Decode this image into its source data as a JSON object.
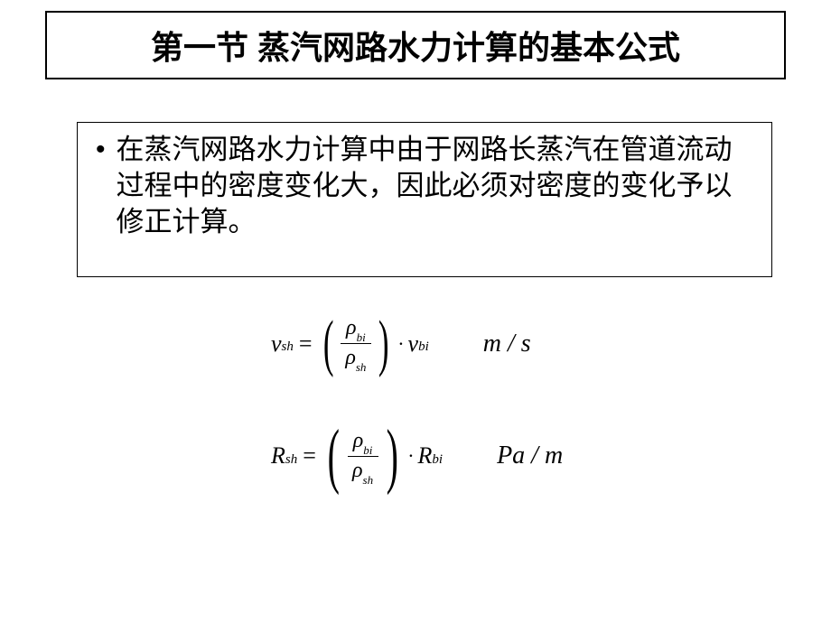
{
  "title": "第一节 蒸汽网路水力计算的基本公式",
  "body_text": "在蒸汽网路水力计算中由于网路长蒸汽在管道流动过程中的密度变化大，因此必须对密度的变化予以修正计算。",
  "formulas": {
    "velocity": {
      "lhs_var": "v",
      "lhs_sub": "sh",
      "num_var": "ρ",
      "num_sub": "bi",
      "den_var": "ρ",
      "den_sub": "sh",
      "rhs_var": "v",
      "rhs_sub": "bi",
      "unit": "m / s"
    },
    "resistance": {
      "lhs_var": "R",
      "lhs_sub": "sh",
      "num_var": "ρ",
      "num_sub": "bi",
      "den_var": "ρ",
      "den_sub": "sh",
      "rhs_var": "R",
      "rhs_sub": "bi",
      "unit": "Pa / m"
    }
  },
  "styling": {
    "title_fontsize": 36,
    "body_fontsize": 31,
    "formula_fontsize": 26,
    "unit_fontsize": 28,
    "border_color": "#000000",
    "background": "#ffffff",
    "text_color": "#000000"
  }
}
